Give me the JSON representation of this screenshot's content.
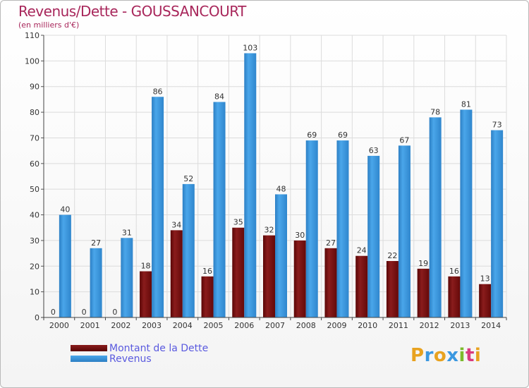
{
  "title": "Revenus/Dette - GOUSSANCOURT",
  "subtitle": "(en milliers d'€)",
  "chart_data": {
    "type": "bar",
    "title": "Revenus/Dette - GOUSSANCOURT",
    "subtitle": "(en milliers d'€)",
    "categories": [
      "2000",
      "2001",
      "2002",
      "2003",
      "2004",
      "2005",
      "2006",
      "2007",
      "2008",
      "2009",
      "2010",
      "2011",
      "2012",
      "2013",
      "2014"
    ],
    "series": [
      {
        "name": "Montant de la Dette",
        "color": "#7a0e0e",
        "values": [
          0,
          0,
          0,
          18,
          34,
          16,
          35,
          32,
          30,
          27,
          24,
          22,
          19,
          16,
          13
        ]
      },
      {
        "name": "Revenus",
        "color": "#3b98e0",
        "values": [
          40,
          27,
          31,
          86,
          52,
          84,
          103,
          48,
          69,
          69,
          63,
          67,
          78,
          81,
          73
        ]
      }
    ],
    "ylim": [
      0,
      110
    ],
    "yticks": [
      0,
      10,
      20,
      30,
      40,
      50,
      60,
      70,
      80,
      90,
      100,
      110
    ],
    "grid": true,
    "legend_position": "bottom-left"
  },
  "legend": {
    "dette_label": "Montant de la Dette",
    "revenus_label": "Revenus"
  },
  "logo": {
    "letters": [
      "P",
      "r",
      "o",
      "x",
      "i",
      "t",
      "i"
    ],
    "colors": [
      "#e8a21f",
      "#3b98e0",
      "#e8a21f",
      "#3b98e0",
      "#7cba2c",
      "#d93a7e",
      "#e8a21f"
    ]
  }
}
